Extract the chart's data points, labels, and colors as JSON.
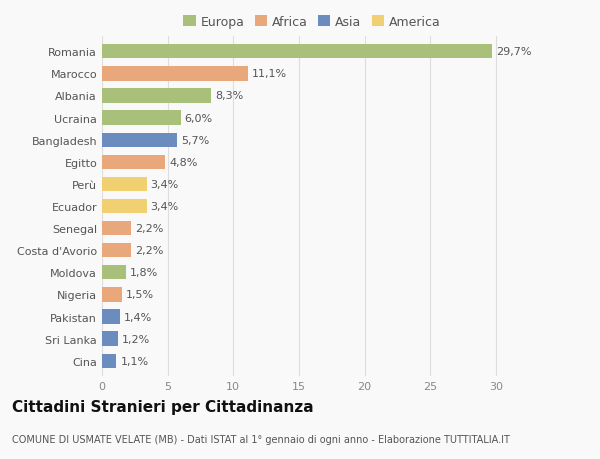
{
  "categories": [
    "Romania",
    "Marocco",
    "Albania",
    "Ucraina",
    "Bangladesh",
    "Egitto",
    "Perù",
    "Ecuador",
    "Senegal",
    "Costa d'Avorio",
    "Moldova",
    "Nigeria",
    "Pakistan",
    "Sri Lanka",
    "Cina"
  ],
  "values": [
    29.7,
    11.1,
    8.3,
    6.0,
    5.7,
    4.8,
    3.4,
    3.4,
    2.2,
    2.2,
    1.8,
    1.5,
    1.4,
    1.2,
    1.1
  ],
  "continents": [
    "Europa",
    "Africa",
    "Europa",
    "Europa",
    "Asia",
    "Africa",
    "America",
    "America",
    "Africa",
    "Africa",
    "Europa",
    "Africa",
    "Asia",
    "Asia",
    "Asia"
  ],
  "colors": {
    "Europa": "#a8c07a",
    "Africa": "#e8a87c",
    "Asia": "#6b8cbf",
    "America": "#f0d070"
  },
  "legend_order": [
    "Europa",
    "Africa",
    "Asia",
    "America"
  ],
  "xlim": [
    0,
    32
  ],
  "xticks": [
    0,
    5,
    10,
    15,
    20,
    25,
    30
  ],
  "title": "Cittadini Stranieri per Cittadinanza",
  "subtitle": "COMUNE DI USMATE VELATE (MB) - Dati ISTAT al 1° gennaio di ogni anno - Elaborazione TUTTITALIA.IT",
  "background_color": "#f9f9f9",
  "grid_color": "#dddddd",
  "bar_height": 0.65,
  "title_fontsize": 11,
  "subtitle_fontsize": 7,
  "label_fontsize": 8,
  "tick_fontsize": 8,
  "legend_fontsize": 9
}
